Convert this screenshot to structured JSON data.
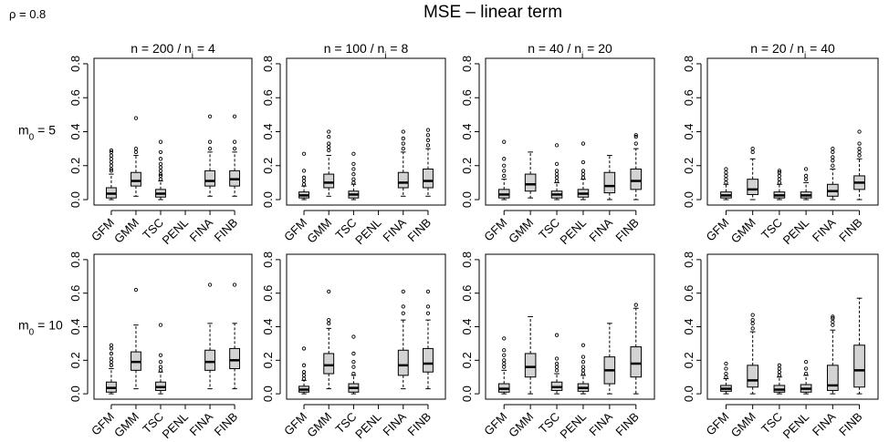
{
  "title": "MSE – linear term",
  "rho_label": "ρ = 0.8",
  "row_labels": [
    {
      "base": "m",
      "sub": "0",
      "tail": " = 5"
    },
    {
      "base": "m",
      "sub": "0",
      "tail": " = 10"
    }
  ],
  "colors": {
    "box_fill": "#d3d3d3",
    "stroke": "#000000",
    "background": "#ffffff"
  },
  "chart_data": [
    {
      "type": "boxplot",
      "title": {
        "n": "n = 200 / n",
        "sub": "i",
        "tail": " = 4"
      },
      "categories": [
        "GFM",
        "GMM",
        "TSC",
        "PENL",
        "FINA",
        "FINB"
      ],
      "ylim": [
        0,
        0.8
      ],
      "yticks": [
        0,
        0.2,
        0.4,
        0.6,
        0.8
      ],
      "boxes": [
        {
          "low": 0.0,
          "q1": 0.01,
          "median": 0.035,
          "q3": 0.07,
          "high": 0.15,
          "outliers": [
            0.17,
            0.18,
            0.2,
            0.22,
            0.24,
            0.26,
            0.28,
            0.29
          ]
        },
        {
          "low": 0.02,
          "q1": 0.08,
          "median": 0.11,
          "q3": 0.16,
          "high": 0.26,
          "outliers": [
            0.28,
            0.3,
            0.48
          ]
        },
        {
          "low": 0.0,
          "q1": 0.015,
          "median": 0.035,
          "q3": 0.06,
          "high": 0.11,
          "outliers": [
            0.12,
            0.14,
            0.15,
            0.17,
            0.19,
            0.21,
            0.24,
            0.28,
            0.34
          ]
        },
        null,
        {
          "low": 0.02,
          "q1": 0.08,
          "median": 0.11,
          "q3": 0.17,
          "high": 0.28,
          "outliers": [
            0.3,
            0.34,
            0.49
          ]
        },
        {
          "low": 0.02,
          "q1": 0.08,
          "median": 0.12,
          "q3": 0.17,
          "high": 0.28,
          "outliers": [
            0.3,
            0.34,
            0.49
          ]
        }
      ]
    },
    {
      "type": "boxplot",
      "title": {
        "n": "n = 100 / n",
        "sub": "i",
        "tail": " = 8"
      },
      "categories": [
        "GFM",
        "GMM",
        "TSC",
        "PENL",
        "FINA",
        "FINB"
      ],
      "ylim": [
        0,
        0.8
      ],
      "yticks": [
        0,
        0.2,
        0.4,
        0.6,
        0.8
      ],
      "boxes": [
        {
          "low": 0.0,
          "q1": 0.01,
          "median": 0.025,
          "q3": 0.045,
          "high": 0.08,
          "outliers": [
            0.09,
            0.11,
            0.13,
            0.17,
            0.27
          ]
        },
        {
          "low": 0.02,
          "q1": 0.07,
          "median": 0.1,
          "q3": 0.15,
          "high": 0.26,
          "outliers": [
            0.29,
            0.31,
            0.33,
            0.37,
            0.4
          ]
        },
        {
          "low": 0.0,
          "q1": 0.01,
          "median": 0.03,
          "q3": 0.05,
          "high": 0.09,
          "outliers": [
            0.1,
            0.12,
            0.15,
            0.18,
            0.21,
            0.27
          ]
        },
        null,
        {
          "low": 0.02,
          "q1": 0.07,
          "median": 0.1,
          "q3": 0.16,
          "high": 0.28,
          "outliers": [
            0.3,
            0.33,
            0.36,
            0.4
          ]
        },
        {
          "low": 0.02,
          "q1": 0.07,
          "median": 0.11,
          "q3": 0.18,
          "high": 0.3,
          "outliers": [
            0.32,
            0.35,
            0.38,
            0.41
          ]
        }
      ]
    },
    {
      "type": "boxplot",
      "title": {
        "n": "n = 40 / n",
        "sub": "i",
        "tail": " = 20"
      },
      "categories": [
        "GFM",
        "GMM",
        "TSC",
        "PENL",
        "FINA",
        "FINB"
      ],
      "ylim": [
        0,
        0.8
      ],
      "yticks": [
        0,
        0.2,
        0.4,
        0.6,
        0.8
      ],
      "boxes": [
        {
          "low": 0.0,
          "q1": 0.01,
          "median": 0.03,
          "q3": 0.06,
          "high": 0.12,
          "outliers": [
            0.14,
            0.17,
            0.2,
            0.24,
            0.34
          ]
        },
        {
          "low": 0.01,
          "q1": 0.05,
          "median": 0.09,
          "q3": 0.15,
          "high": 0.28,
          "outliers": []
        },
        {
          "low": 0.0,
          "q1": 0.01,
          "median": 0.03,
          "q3": 0.05,
          "high": 0.1,
          "outliers": [
            0.11,
            0.13,
            0.15,
            0.17,
            0.21,
            0.32
          ]
        },
        {
          "low": 0.0,
          "q1": 0.015,
          "median": 0.035,
          "q3": 0.06,
          "high": 0.12,
          "outliers": [
            0.13,
            0.15,
            0.17,
            0.22,
            0.33
          ]
        },
        {
          "low": 0.0,
          "q1": 0.04,
          "median": 0.08,
          "q3": 0.16,
          "high": 0.26,
          "outliers": []
        },
        {
          "low": 0.0,
          "q1": 0.06,
          "median": 0.11,
          "q3": 0.18,
          "high": 0.3,
          "outliers": [
            0.33,
            0.37,
            0.38
          ]
        }
      ]
    },
    {
      "type": "boxplot",
      "title": {
        "n": "n = 20 / n",
        "sub": "i",
        "tail": " = 40"
      },
      "categories": [
        "GFM",
        "GMM",
        "TSC",
        "PENL",
        "FINA",
        "FINB"
      ],
      "ylim": [
        0,
        0.8
      ],
      "yticks": [
        0,
        0.2,
        0.4,
        0.6,
        0.8
      ],
      "boxes": [
        {
          "low": 0.0,
          "q1": 0.01,
          "median": 0.025,
          "q3": 0.045,
          "high": 0.09,
          "outliers": [
            0.1,
            0.12,
            0.14,
            0.16,
            0.18
          ]
        },
        {
          "low": 0.0,
          "q1": 0.03,
          "median": 0.06,
          "q3": 0.12,
          "high": 0.24,
          "outliers": [
            0.28,
            0.3
          ]
        },
        {
          "low": 0.0,
          "q1": 0.01,
          "median": 0.025,
          "q3": 0.045,
          "high": 0.09,
          "outliers": [
            0.1,
            0.12,
            0.14,
            0.16,
            0.17
          ]
        },
        {
          "low": 0.0,
          "q1": 0.01,
          "median": 0.025,
          "q3": 0.045,
          "high": 0.1,
          "outliers": [
            0.12,
            0.14,
            0.18
          ]
        },
        {
          "low": 0.0,
          "q1": 0.02,
          "median": 0.05,
          "q3": 0.09,
          "high": 0.18,
          "outliers": [
            0.2,
            0.23,
            0.25,
            0.28,
            0.3
          ]
        },
        {
          "low": 0.0,
          "q1": 0.06,
          "median": 0.1,
          "q3": 0.14,
          "high": 0.24,
          "outliers": [
            0.26,
            0.28,
            0.3,
            0.33,
            0.4
          ]
        }
      ]
    },
    {
      "type": "boxplot",
      "title": null,
      "categories": [
        "GFM",
        "GMM",
        "TSC",
        "PENL",
        "FINA",
        "FINB"
      ],
      "ylim": [
        0,
        0.8
      ],
      "yticks": [
        0,
        0.2,
        0.4,
        0.6,
        0.8
      ],
      "boxes": [
        {
          "low": 0.0,
          "q1": 0.01,
          "median": 0.035,
          "q3": 0.07,
          "high": 0.15,
          "outliers": [
            0.17,
            0.19,
            0.21,
            0.24,
            0.27,
            0.29
          ]
        },
        {
          "low": 0.03,
          "q1": 0.14,
          "median": 0.19,
          "q3": 0.25,
          "high": 0.41,
          "outliers": [
            0.62
          ]
        },
        {
          "low": 0.0,
          "q1": 0.02,
          "median": 0.04,
          "q3": 0.07,
          "high": 0.13,
          "outliers": [
            0.14,
            0.16,
            0.19,
            0.23,
            0.41
          ]
        },
        null,
        {
          "low": 0.03,
          "q1": 0.14,
          "median": 0.19,
          "q3": 0.26,
          "high": 0.42,
          "outliers": [
            0.65
          ]
        },
        {
          "low": 0.03,
          "q1": 0.15,
          "median": 0.2,
          "q3": 0.27,
          "high": 0.42,
          "outliers": [
            0.65
          ]
        }
      ]
    },
    {
      "type": "boxplot",
      "title": null,
      "categories": [
        "GFM",
        "GMM",
        "TSC",
        "PENL",
        "FINA",
        "FINB"
      ],
      "ylim": [
        0,
        0.8
      ],
      "yticks": [
        0,
        0.2,
        0.4,
        0.6,
        0.8
      ],
      "boxes": [
        {
          "low": 0.0,
          "q1": 0.01,
          "median": 0.025,
          "q3": 0.045,
          "high": 0.08,
          "outliers": [
            0.09,
            0.11,
            0.13,
            0.17,
            0.27
          ]
        },
        {
          "low": 0.03,
          "q1": 0.12,
          "median": 0.17,
          "q3": 0.24,
          "high": 0.39,
          "outliers": [
            0.42,
            0.44,
            0.61
          ]
        },
        {
          "low": 0.0,
          "q1": 0.01,
          "median": 0.035,
          "q3": 0.06,
          "high": 0.11,
          "outliers": [
            0.12,
            0.16,
            0.19,
            0.24,
            0.34
          ]
        },
        null,
        {
          "low": 0.03,
          "q1": 0.11,
          "median": 0.17,
          "q3": 0.26,
          "high": 0.44,
          "outliers": [
            0.48,
            0.52,
            0.61
          ]
        },
        {
          "low": 0.03,
          "q1": 0.13,
          "median": 0.18,
          "q3": 0.27,
          "high": 0.44,
          "outliers": [
            0.48,
            0.52,
            0.61
          ]
        }
      ]
    },
    {
      "type": "boxplot",
      "title": null,
      "categories": [
        "GFM",
        "GMM",
        "TSC",
        "PENL",
        "FINA",
        "FINB"
      ],
      "ylim": [
        0,
        0.8
      ],
      "yticks": [
        0,
        0.2,
        0.4,
        0.6,
        0.8
      ],
      "boxes": [
        {
          "low": 0.0,
          "q1": 0.01,
          "median": 0.03,
          "q3": 0.06,
          "high": 0.14,
          "outliers": [
            0.16,
            0.18,
            0.2,
            0.23,
            0.26,
            0.33
          ]
        },
        {
          "low": 0.0,
          "q1": 0.1,
          "median": 0.16,
          "q3": 0.24,
          "high": 0.46,
          "outliers": []
        },
        {
          "low": 0.0,
          "q1": 0.02,
          "median": 0.04,
          "q3": 0.07,
          "high": 0.12,
          "outliers": [
            0.14,
            0.16,
            0.18,
            0.21,
            0.35
          ]
        },
        {
          "low": 0.0,
          "q1": 0.015,
          "median": 0.035,
          "q3": 0.06,
          "high": 0.11,
          "outliers": [
            0.12,
            0.14,
            0.16,
            0.19,
            0.22,
            0.29
          ]
        },
        {
          "low": 0.0,
          "q1": 0.06,
          "median": 0.14,
          "q3": 0.22,
          "high": 0.42,
          "outliers": []
        },
        {
          "low": 0.0,
          "q1": 0.1,
          "median": 0.18,
          "q3": 0.28,
          "high": 0.51,
          "outliers": [
            0.53
          ]
        }
      ]
    },
    {
      "type": "boxplot",
      "title": null,
      "categories": [
        "GFM",
        "GMM",
        "TSC",
        "PENL",
        "FINA",
        "FINB"
      ],
      "ylim": [
        0,
        0.8
      ],
      "yticks": [
        0,
        0.2,
        0.4,
        0.6,
        0.8
      ],
      "boxes": [
        {
          "low": 0.0,
          "q1": 0.015,
          "median": 0.03,
          "q3": 0.05,
          "high": 0.09,
          "outliers": [
            0.1,
            0.12,
            0.15,
            0.18
          ]
        },
        {
          "low": 0.0,
          "q1": 0.04,
          "median": 0.08,
          "q3": 0.17,
          "high": 0.37,
          "outliers": [
            0.39,
            0.42,
            0.44,
            0.47
          ]
        },
        {
          "low": 0.0,
          "q1": 0.01,
          "median": 0.025,
          "q3": 0.05,
          "high": 0.1,
          "outliers": [
            0.11,
            0.13,
            0.15,
            0.17
          ]
        },
        {
          "low": 0.0,
          "q1": 0.01,
          "median": 0.03,
          "q3": 0.055,
          "high": 0.11,
          "outliers": [
            0.12,
            0.15,
            0.19
          ]
        },
        {
          "low": 0.0,
          "q1": 0.02,
          "median": 0.05,
          "q3": 0.17,
          "high": 0.38,
          "outliers": [
            0.41,
            0.43,
            0.45,
            0.46
          ]
        },
        {
          "low": 0.0,
          "q1": 0.04,
          "median": 0.14,
          "q3": 0.29,
          "high": 0.57,
          "outliers": []
        }
      ]
    }
  ]
}
